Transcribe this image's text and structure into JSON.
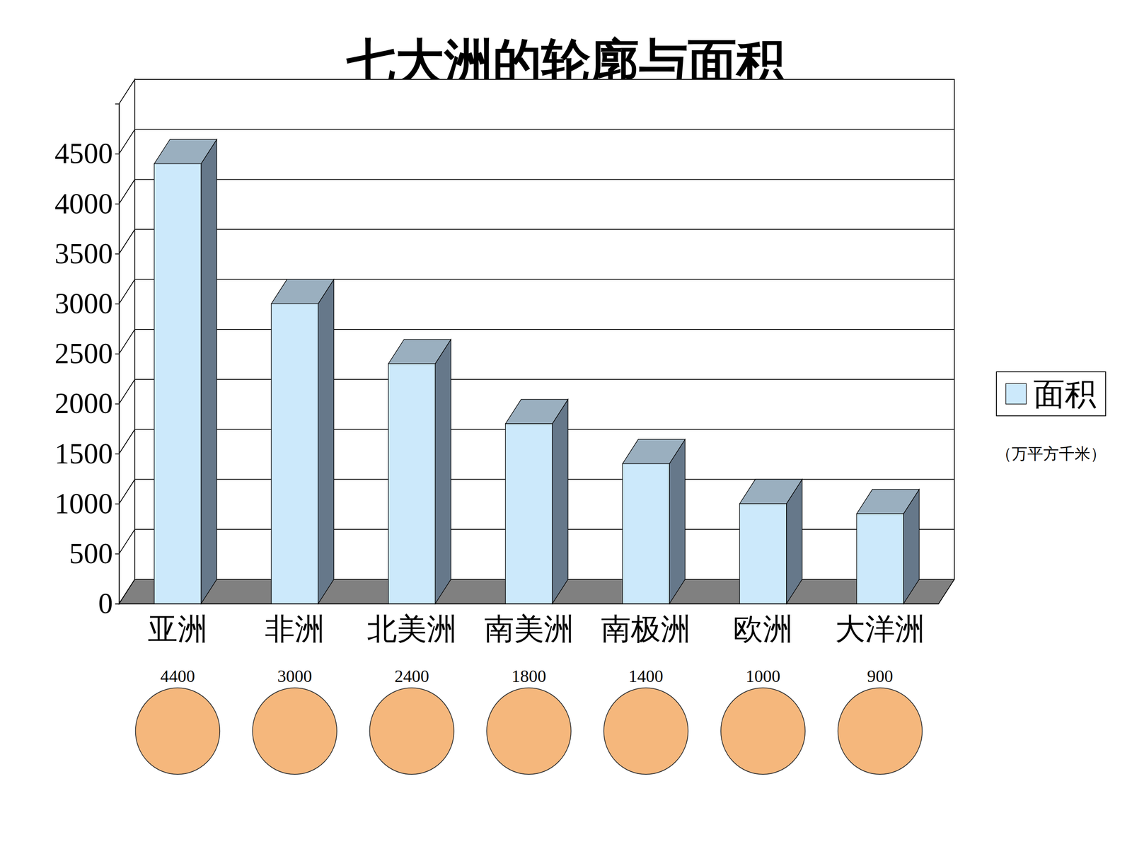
{
  "chart_data": {
    "type": "bar",
    "title": "七大洲的轮廓与面积",
    "categories": [
      "亚洲",
      "非洲",
      "北美洲",
      "南美洲",
      "南极洲",
      "欧洲",
      "大洋洲"
    ],
    "series": [
      {
        "name": "面积",
        "color": "#cce9fb",
        "values": [
          4400,
          3000,
          2400,
          1800,
          1400,
          1000,
          900
        ]
      }
    ],
    "ylabel": "（万平方千米）",
    "ylim": [
      0,
      5000
    ],
    "yticks": [
      0,
      500,
      1000,
      1500,
      2000,
      2500,
      3000,
      3500,
      4000,
      4500
    ],
    "grid": true,
    "legend": "right",
    "data_labels": true
  }
}
